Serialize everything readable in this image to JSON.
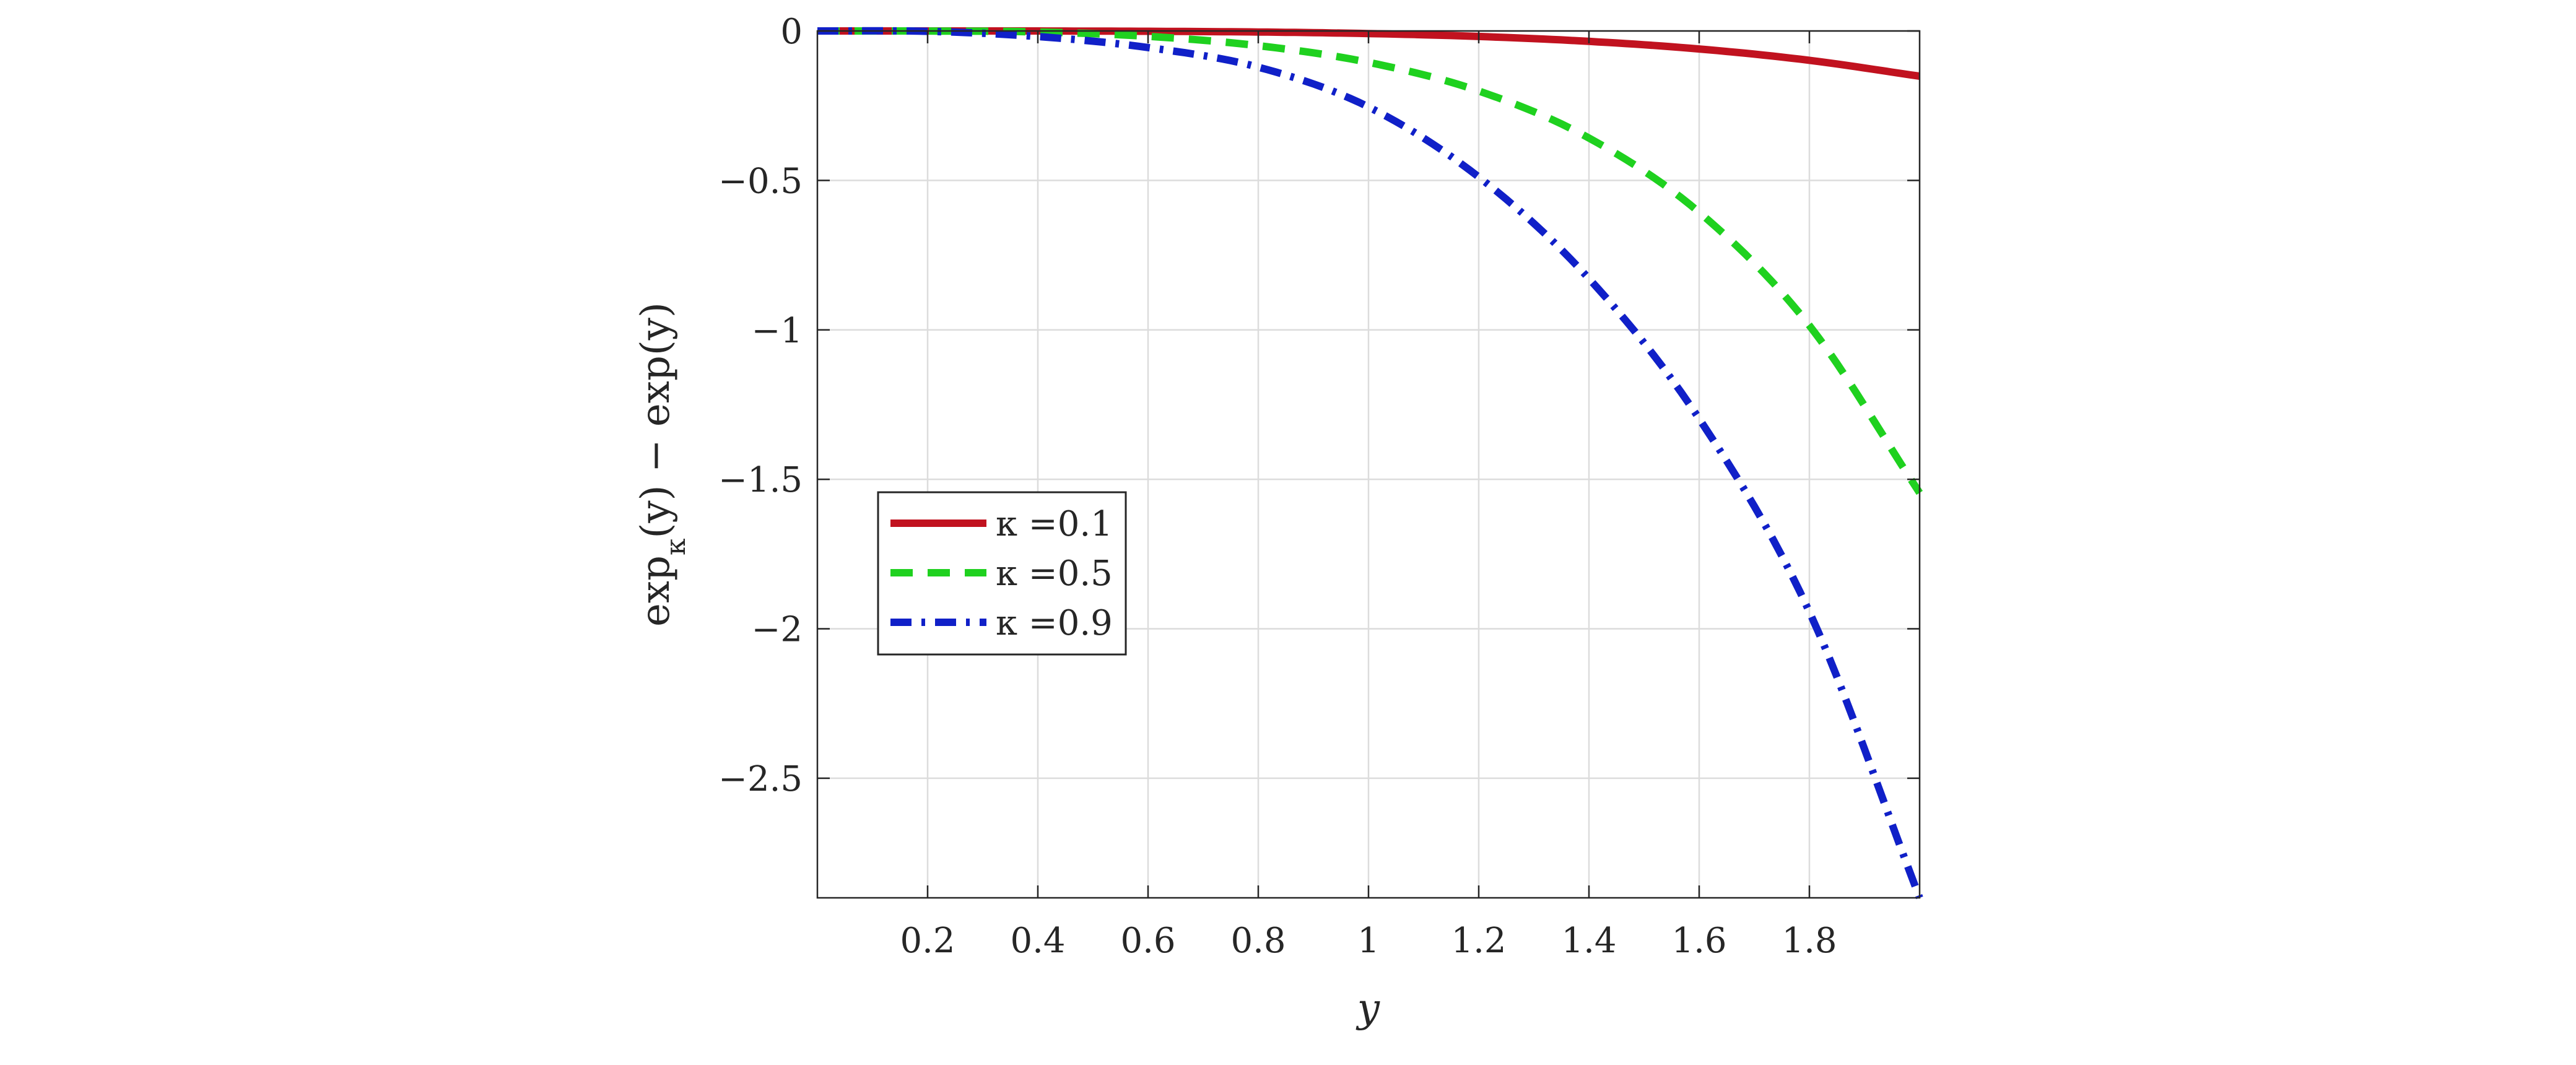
{
  "chart_data": {
    "type": "line",
    "title": "",
    "xlabel": "y",
    "ylabel": "exp_κ(y) − exp(y)",
    "xlim": [
      0,
      2
    ],
    "ylim": [
      -2.9,
      0
    ],
    "grid": true,
    "legend_position": "left-middle",
    "x_ticks": [
      0.2,
      0.4,
      0.6,
      0.8,
      1,
      1.2,
      1.4,
      1.6,
      1.8
    ],
    "x_tick_labels": [
      "0.2",
      "0.4",
      "0.6",
      "0.8",
      "1",
      "1.2",
      "1.4",
      "1.6",
      "1.8"
    ],
    "y_ticks": [
      0,
      -0.5,
      -1,
      -1.5,
      -2,
      -2.5
    ],
    "y_tick_labels": [
      "0",
      "−0.5",
      "−1",
      "−1.5",
      "−2",
      "−2.5"
    ],
    "x": [
      0,
      0.2,
      0.4,
      0.6,
      0.8,
      1.0,
      1.2,
      1.4,
      1.6,
      1.8,
      2.0
    ],
    "series": [
      {
        "name": "κ =0.1",
        "kappa": "0.1",
        "color": "#c1121f",
        "style": "solid",
        "values": [
          0,
          0,
          -0.0001,
          -0.0011,
          -0.0035,
          -0.0087,
          -0.0184,
          -0.0348,
          -0.0603,
          -0.0982,
          -0.1513
        ]
      },
      {
        "name": "κ =0.5",
        "kappa": "0.5",
        "color": "#1fd11f",
        "style": "dashed",
        "values": [
          0,
          -0.0002,
          -0.0034,
          -0.018,
          -0.0492,
          -0.1051,
          -0.2008,
          -0.3582,
          -0.6066,
          -0.9854,
          -1.5453
        ]
      },
      {
        "name": "κ =0.9",
        "kappa": "0.9",
        "color": "#1020c8",
        "style": "dashdot",
        "values": [
          0,
          -0.0012,
          -0.0187,
          -0.0555,
          -0.1211,
          -0.2542,
          -0.4885,
          -0.8283,
          -1.2972,
          -1.9434,
          -2.9
        ]
      }
    ]
  }
}
